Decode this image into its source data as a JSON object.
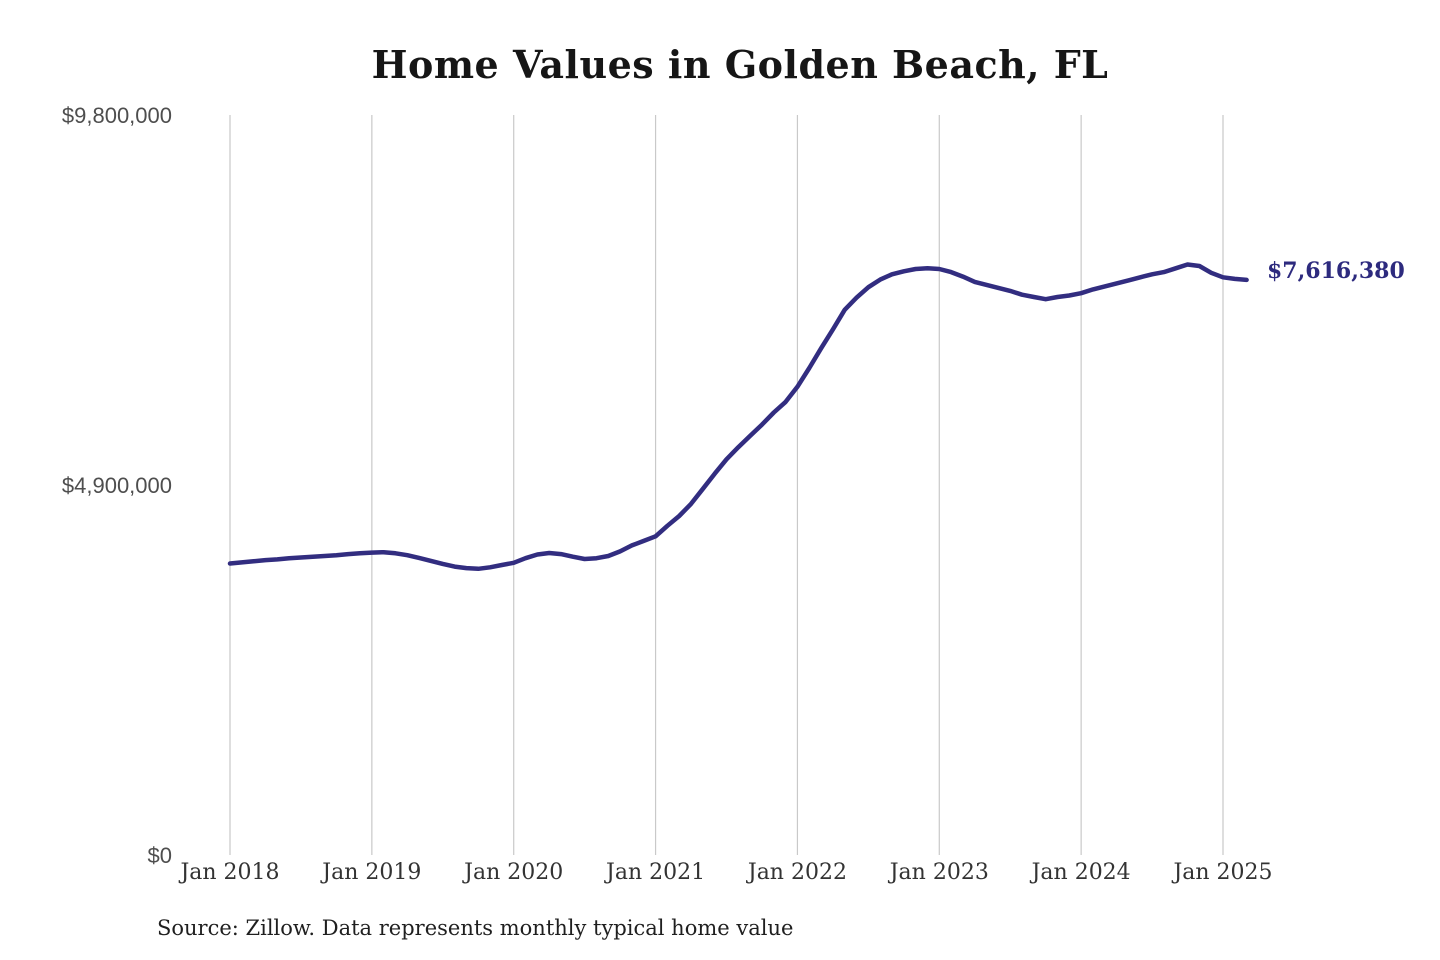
{
  "chart_data": {
    "type": "line",
    "title": "Home Values in Golden Beach, FL",
    "source": "Source: Zillow. Data represents monthly typical home value",
    "end_label": "$7,616,380",
    "end_value": 7616380,
    "legend": "none",
    "grid": "vertical-only",
    "x_axis": {
      "tick_labels": [
        "Jan 2018",
        "Jan 2019",
        "Jan 2020",
        "Jan 2021",
        "Jan 2022",
        "Jan 2023",
        "Jan 2024",
        "Jan 2025"
      ]
    },
    "y_axis": {
      "min": 0,
      "max": 9800000,
      "ticks": [
        {
          "label": "$9,800,000",
          "value": 9800000
        },
        {
          "label": "$4,900,000",
          "value": 4900000
        },
        {
          "label": "$0",
          "value": 0
        }
      ]
    },
    "series": [
      {
        "name": "Monthly typical home value",
        "months": [
          "2018-01",
          "2018-02",
          "2018-03",
          "2018-04",
          "2018-05",
          "2018-06",
          "2018-07",
          "2018-08",
          "2018-09",
          "2018-10",
          "2018-11",
          "2018-12",
          "2019-01",
          "2019-02",
          "2019-03",
          "2019-04",
          "2019-05",
          "2019-06",
          "2019-07",
          "2019-08",
          "2019-09",
          "2019-10",
          "2019-11",
          "2019-12",
          "2020-01",
          "2020-02",
          "2020-03",
          "2020-04",
          "2020-05",
          "2020-06",
          "2020-07",
          "2020-08",
          "2020-09",
          "2020-10",
          "2020-11",
          "2020-12",
          "2021-01",
          "2021-02",
          "2021-03",
          "2021-04",
          "2021-05",
          "2021-06",
          "2021-07",
          "2021-08",
          "2021-09",
          "2021-10",
          "2021-11",
          "2021-12",
          "2022-01",
          "2022-02",
          "2022-03",
          "2022-04",
          "2022-05",
          "2022-06",
          "2022-07",
          "2022-08",
          "2022-09",
          "2022-10",
          "2022-11",
          "2022-12",
          "2023-01",
          "2023-02",
          "2023-03",
          "2023-04",
          "2023-05",
          "2023-06",
          "2023-07",
          "2023-08",
          "2023-09",
          "2023-10",
          "2023-11",
          "2023-12",
          "2024-01",
          "2024-02",
          "2024-03",
          "2024-04",
          "2024-05",
          "2024-06",
          "2024-07",
          "2024-08",
          "2024-09",
          "2024-10",
          "2024-11",
          "2024-12",
          "2025-01",
          "2025-02",
          "2025-03"
        ],
        "values": [
          3860000,
          3875000,
          3890000,
          3905000,
          3915000,
          3930000,
          3940000,
          3950000,
          3960000,
          3970000,
          3985000,
          3995000,
          4005000,
          4010000,
          3995000,
          3970000,
          3935000,
          3895000,
          3855000,
          3820000,
          3800000,
          3790000,
          3810000,
          3840000,
          3870000,
          3930000,
          3980000,
          4000000,
          3985000,
          3950000,
          3920000,
          3930000,
          3960000,
          4020000,
          4100000,
          4160000,
          4220000,
          4360000,
          4490000,
          4650000,
          4850000,
          5050000,
          5240000,
          5400000,
          5550000,
          5700000,
          5860000,
          6000000,
          6200000,
          6450000,
          6710000,
          6960000,
          7220000,
          7380000,
          7520000,
          7620000,
          7690000,
          7730000,
          7760000,
          7770000,
          7760000,
          7720000,
          7660000,
          7590000,
          7550000,
          7510000,
          7470000,
          7420000,
          7390000,
          7360000,
          7390000,
          7410000,
          7440000,
          7490000,
          7530000,
          7570000,
          7610000,
          7650000,
          7690000,
          7720000,
          7770000,
          7820000,
          7800000,
          7710000,
          7650000,
          7630000,
          7616380
        ]
      }
    ],
    "colors": {
      "line": "#322d80",
      "annotation": "#2d2a7e",
      "grid": "#c9c9c9",
      "x_tick_text": "#333333",
      "y_tick_text": "#4e4e4e",
      "title_text": "#161616",
      "source_text": "#1f1f1f",
      "background": "#ffffff"
    }
  }
}
